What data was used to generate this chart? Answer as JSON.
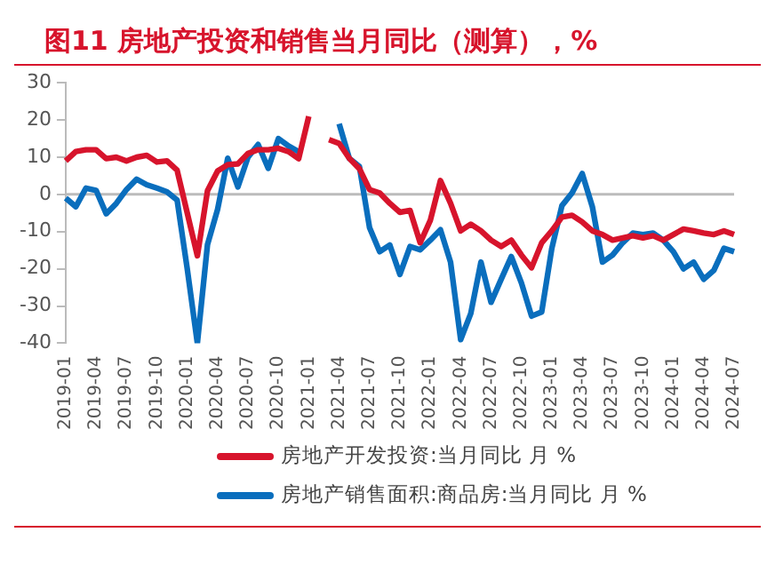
{
  "chart_data": {
    "type": "line",
    "title": "图11  房地产投资和销售当月同比（测算），%",
    "categories": [
      "2019-01",
      null,
      null,
      "2019-04",
      null,
      null,
      "2019-07",
      null,
      null,
      "2019-10",
      null,
      null,
      "2020-01",
      null,
      null,
      "2020-04",
      null,
      null,
      "2020-07",
      null,
      null,
      "2020-10",
      null,
      null,
      "2021-01",
      null,
      null,
      "2021-04",
      null,
      null,
      "2021-07",
      null,
      null,
      "2021-10",
      null,
      null,
      "2022-01",
      null,
      null,
      "2022-04",
      null,
      null,
      "2022-07",
      null,
      null,
      "2022-10",
      null,
      null,
      "2023-01",
      null,
      null,
      "2023-04",
      null,
      null,
      "2023-07",
      null,
      null,
      "2023-10",
      null,
      null,
      "2024-01",
      null,
      null,
      "2024-04",
      null,
      null,
      "2024-07"
    ],
    "series": [
      {
        "name": "房地产开发投资:当月同比 月 %",
        "color": "#d7142c",
        "values": [
          9,
          11.5,
          12,
          12,
          9.6,
          10,
          9,
          10,
          10.5,
          8.7,
          9,
          6.5,
          -5,
          -16.5,
          1,
          6.3,
          8,
          8.2,
          11,
          12,
          12,
          12.4,
          11.5,
          9.6,
          21,
          null,
          14.7,
          13.7,
          9.7,
          6.9,
          1.3,
          0.4,
          -2.4,
          -4.8,
          -4.3,
          -13,
          -7,
          3.7,
          -2.4,
          -9.8,
          -8,
          -9.8,
          -12.3,
          -14,
          -12.3,
          -16.3,
          -19.7,
          -13,
          -9.8,
          -6.1,
          -5.6,
          -7.4,
          -9.8,
          -10.8,
          -12.3,
          -11.7,
          -11.1,
          -11.7,
          -11.1,
          -12.3,
          -10.8,
          -9.3,
          -9.8,
          -10.4,
          -10.8,
          -9.8,
          -10.8
        ]
      },
      {
        "name": "房地产销售面积:商品房:当月同比 月 %",
        "color": "#0a6ebd",
        "values": [
          -1,
          -3.3,
          1.7,
          1.1,
          -5.2,
          -2.4,
          1.3,
          4.1,
          2.6,
          1.7,
          0.7,
          -1.5,
          -20,
          -40,
          -13.5,
          -4,
          9.7,
          2,
          10,
          13.4,
          7,
          15,
          13,
          11.5,
          null,
          null,
          null,
          19,
          9.7,
          7.5,
          -8.9,
          -15.4,
          -13.6,
          -21.5,
          -14,
          -14.9,
          -12.3,
          -9.5,
          -18.2,
          -39,
          -32,
          -18.2,
          -29,
          -22.8,
          -16.7,
          -23.8,
          -32.7,
          -31.6,
          -14.5,
          -3,
          0.4,
          5.6,
          -3.3,
          -18.2,
          -16.3,
          -13,
          -10.4,
          -10.8,
          -10.4,
          -12.3,
          -15.4,
          -20,
          -18.2,
          -22.8,
          -20.4,
          -14.5,
          -15.4
        ]
      }
    ],
    "ylim": [
      -40,
      30
    ],
    "yticks": [
      -40,
      -30,
      -20,
      -10,
      0,
      10,
      20,
      30
    ],
    "ref_lines": [
      {
        "axis": "y",
        "value": 0,
        "color": "#bbbbbb"
      }
    ],
    "grid": false,
    "legend": "bottom",
    "marker": "none",
    "line_style": "solid"
  }
}
